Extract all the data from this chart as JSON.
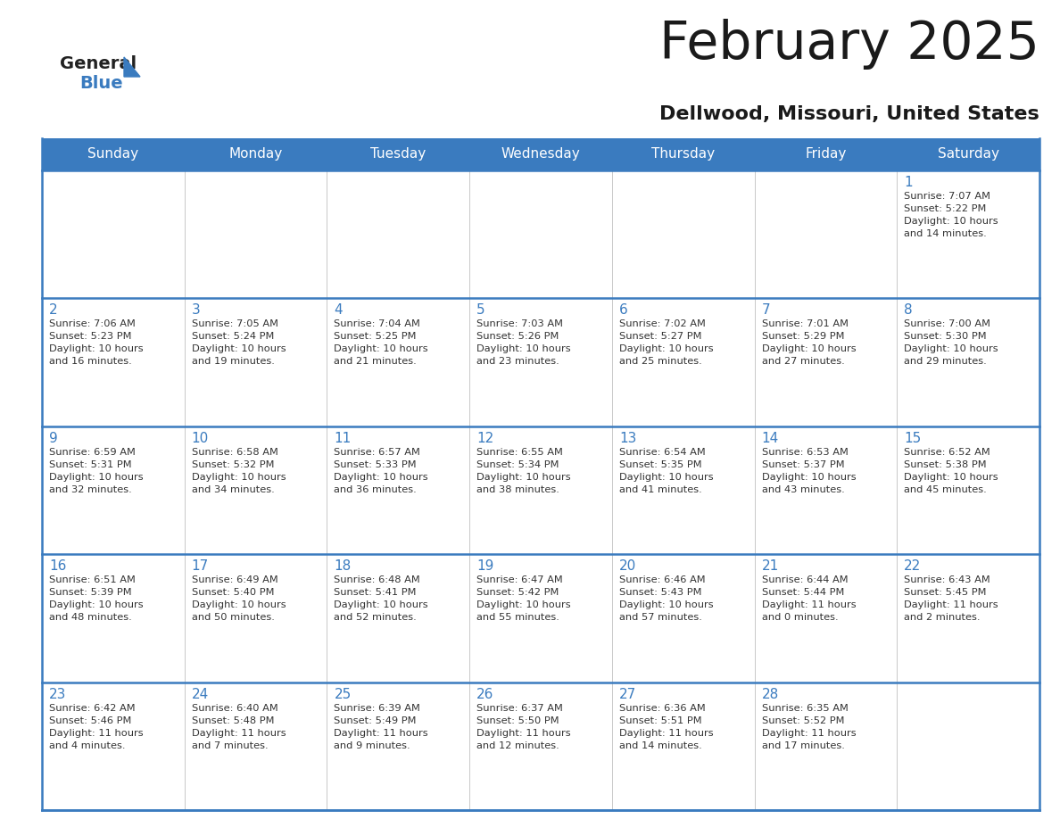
{
  "title": "February 2025",
  "subtitle": "Dellwood, Missouri, United States",
  "header_bg": "#3a7bbf",
  "header_text_color": "#ffffff",
  "cell_bg": "#ffffff",
  "day_number_color": "#3a7bbf",
  "info_text_color": "#333333",
  "border_color": "#3a7bbf",
  "separator_color": "#c0c0c0",
  "days_of_week": [
    "Sunday",
    "Monday",
    "Tuesday",
    "Wednesday",
    "Thursday",
    "Friday",
    "Saturday"
  ],
  "weeks": [
    [
      {
        "day": null,
        "info": ""
      },
      {
        "day": null,
        "info": ""
      },
      {
        "day": null,
        "info": ""
      },
      {
        "day": null,
        "info": ""
      },
      {
        "day": null,
        "info": ""
      },
      {
        "day": null,
        "info": ""
      },
      {
        "day": 1,
        "info": "Sunrise: 7:07 AM\nSunset: 5:22 PM\nDaylight: 10 hours\nand 14 minutes."
      }
    ],
    [
      {
        "day": 2,
        "info": "Sunrise: 7:06 AM\nSunset: 5:23 PM\nDaylight: 10 hours\nand 16 minutes."
      },
      {
        "day": 3,
        "info": "Sunrise: 7:05 AM\nSunset: 5:24 PM\nDaylight: 10 hours\nand 19 minutes."
      },
      {
        "day": 4,
        "info": "Sunrise: 7:04 AM\nSunset: 5:25 PM\nDaylight: 10 hours\nand 21 minutes."
      },
      {
        "day": 5,
        "info": "Sunrise: 7:03 AM\nSunset: 5:26 PM\nDaylight: 10 hours\nand 23 minutes."
      },
      {
        "day": 6,
        "info": "Sunrise: 7:02 AM\nSunset: 5:27 PM\nDaylight: 10 hours\nand 25 minutes."
      },
      {
        "day": 7,
        "info": "Sunrise: 7:01 AM\nSunset: 5:29 PM\nDaylight: 10 hours\nand 27 minutes."
      },
      {
        "day": 8,
        "info": "Sunrise: 7:00 AM\nSunset: 5:30 PM\nDaylight: 10 hours\nand 29 minutes."
      }
    ],
    [
      {
        "day": 9,
        "info": "Sunrise: 6:59 AM\nSunset: 5:31 PM\nDaylight: 10 hours\nand 32 minutes."
      },
      {
        "day": 10,
        "info": "Sunrise: 6:58 AM\nSunset: 5:32 PM\nDaylight: 10 hours\nand 34 minutes."
      },
      {
        "day": 11,
        "info": "Sunrise: 6:57 AM\nSunset: 5:33 PM\nDaylight: 10 hours\nand 36 minutes."
      },
      {
        "day": 12,
        "info": "Sunrise: 6:55 AM\nSunset: 5:34 PM\nDaylight: 10 hours\nand 38 minutes."
      },
      {
        "day": 13,
        "info": "Sunrise: 6:54 AM\nSunset: 5:35 PM\nDaylight: 10 hours\nand 41 minutes."
      },
      {
        "day": 14,
        "info": "Sunrise: 6:53 AM\nSunset: 5:37 PM\nDaylight: 10 hours\nand 43 minutes."
      },
      {
        "day": 15,
        "info": "Sunrise: 6:52 AM\nSunset: 5:38 PM\nDaylight: 10 hours\nand 45 minutes."
      }
    ],
    [
      {
        "day": 16,
        "info": "Sunrise: 6:51 AM\nSunset: 5:39 PM\nDaylight: 10 hours\nand 48 minutes."
      },
      {
        "day": 17,
        "info": "Sunrise: 6:49 AM\nSunset: 5:40 PM\nDaylight: 10 hours\nand 50 minutes."
      },
      {
        "day": 18,
        "info": "Sunrise: 6:48 AM\nSunset: 5:41 PM\nDaylight: 10 hours\nand 52 minutes."
      },
      {
        "day": 19,
        "info": "Sunrise: 6:47 AM\nSunset: 5:42 PM\nDaylight: 10 hours\nand 55 minutes."
      },
      {
        "day": 20,
        "info": "Sunrise: 6:46 AM\nSunset: 5:43 PM\nDaylight: 10 hours\nand 57 minutes."
      },
      {
        "day": 21,
        "info": "Sunrise: 6:44 AM\nSunset: 5:44 PM\nDaylight: 11 hours\nand 0 minutes."
      },
      {
        "day": 22,
        "info": "Sunrise: 6:43 AM\nSunset: 5:45 PM\nDaylight: 11 hours\nand 2 minutes."
      }
    ],
    [
      {
        "day": 23,
        "info": "Sunrise: 6:42 AM\nSunset: 5:46 PM\nDaylight: 11 hours\nand 4 minutes."
      },
      {
        "day": 24,
        "info": "Sunrise: 6:40 AM\nSunset: 5:48 PM\nDaylight: 11 hours\nand 7 minutes."
      },
      {
        "day": 25,
        "info": "Sunrise: 6:39 AM\nSunset: 5:49 PM\nDaylight: 11 hours\nand 9 minutes."
      },
      {
        "day": 26,
        "info": "Sunrise: 6:37 AM\nSunset: 5:50 PM\nDaylight: 11 hours\nand 12 minutes."
      },
      {
        "day": 27,
        "info": "Sunrise: 6:36 AM\nSunset: 5:51 PM\nDaylight: 11 hours\nand 14 minutes."
      },
      {
        "day": 28,
        "info": "Sunrise: 6:35 AM\nSunset: 5:52 PM\nDaylight: 11 hours\nand 17 minutes."
      },
      {
        "day": null,
        "info": ""
      }
    ]
  ],
  "logo_general_color": "#222222",
  "logo_blue_color": "#3a7bbf",
  "logo_triangle_color": "#3a7bbf"
}
